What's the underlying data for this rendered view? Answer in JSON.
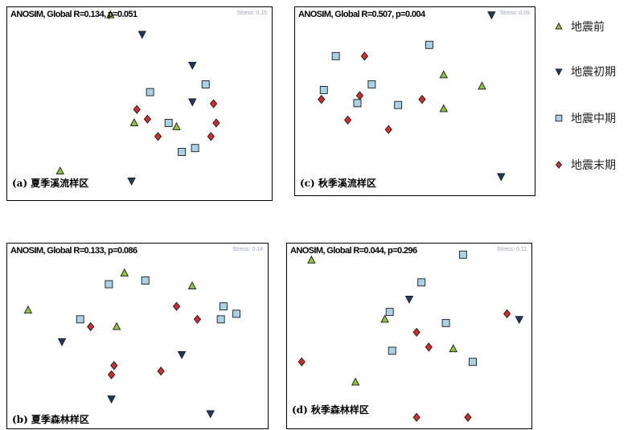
{
  "groups": [
    {
      "key": "before",
      "label": "地震前",
      "shape": "triangle-up",
      "fill": "#8cc43c"
    },
    {
      "key": "early",
      "label": "地震初期",
      "shape": "triangle-down",
      "fill": "#1f3a68"
    },
    {
      "key": "middle",
      "label": "地震中期",
      "shape": "square",
      "fill": "#a9d2e6"
    },
    {
      "key": "late",
      "label": "地震末期",
      "shape": "diamond",
      "fill": "#d42c2c"
    }
  ],
  "panels": [
    {
      "title": "ANOSIM, Global R=0.134, p=0.051",
      "stress": "Stress: 0.15",
      "label": "(a) 夏季溪流样区"
    },
    {
      "title": "ANOSIM, Global R=0.507, p=0.004",
      "stress": "Stress: 0.09",
      "label": "(c) 秋季溪流样区"
    },
    {
      "title": "ANOSIM, Global R=0.133, p=0.086",
      "stress": "Stress: 0.14",
      "label": "(b) 夏季森林样区"
    },
    {
      "title": "ANOSIM, Global R=0.044, p=0.296",
      "stress": "Stress: 0.11",
      "label": "(d) 秋季森林样区"
    }
  ],
  "chart_data": [
    {
      "type": "scatter",
      "title": "ANOSIM, Global R=0.134, p=0.051",
      "xlim": [
        0,
        100
      ],
      "ylim": [
        0,
        100
      ],
      "grid": false,
      "series": [
        {
          "name": "地震前",
          "points": [
            [
              39,
              96
            ],
            [
              48,
              40
            ],
            [
              64,
              38
            ],
            [
              20,
              15
            ]
          ]
        },
        {
          "name": "地震初期",
          "points": [
            [
              51,
              86
            ],
            [
              70,
              70
            ],
            [
              70,
              51
            ],
            [
              47,
              10
            ]
          ]
        },
        {
          "name": "地震中期",
          "points": [
            [
              54,
              56
            ],
            [
              75,
              60
            ],
            [
              61,
              40
            ],
            [
              66,
              25
            ],
            [
              71,
              27
            ]
          ]
        },
        {
          "name": "地震末期",
          "points": [
            [
              49,
              47
            ],
            [
              53,
              42
            ],
            [
              57,
              33
            ],
            [
              78,
              50
            ],
            [
              79,
              40
            ],
            [
              77,
              33
            ]
          ]
        }
      ]
    },
    {
      "type": "scatter",
      "title": "ANOSIM, Global R=0.507, p=0.004",
      "xlim": [
        0,
        100
      ],
      "ylim": [
        0,
        100
      ],
      "grid": false,
      "series": [
        {
          "name": "地震前",
          "points": [
            [
              62,
              64
            ],
            [
              78,
              58
            ],
            [
              62,
              46
            ]
          ]
        },
        {
          "name": "地震初期",
          "points": [
            [
              82,
              96
            ],
            [
              86,
              10
            ]
          ]
        },
        {
          "name": "地震中期",
          "points": [
            [
              17,
              74
            ],
            [
              12,
              56
            ],
            [
              32,
              59
            ],
            [
              56,
              80
            ],
            [
              26,
              49
            ],
            [
              43,
              48
            ]
          ]
        },
        {
          "name": "地震末期",
          "points": [
            [
              29,
              74
            ],
            [
              27,
              53
            ],
            [
              11,
              51
            ],
            [
              22,
              40
            ],
            [
              39,
              35
            ],
            [
              53,
              51
            ]
          ]
        }
      ]
    },
    {
      "type": "scatter",
      "title": "ANOSIM, Global R=0.133, p=0.086",
      "xlim": [
        0,
        100
      ],
      "ylim": [
        0,
        100
      ],
      "grid": false,
      "series": [
        {
          "name": "地震前",
          "points": [
            [
              45,
              84
            ],
            [
              71,
              77
            ],
            [
              8,
              64
            ],
            [
              42,
              55
            ]
          ]
        },
        {
          "name": "地震初期",
          "points": [
            [
              21,
              47
            ],
            [
              67,
              40
            ],
            [
              40,
              16
            ],
            [
              78,
              8
            ]
          ]
        },
        {
          "name": "地震中期",
          "points": [
            [
              39,
              78
            ],
            [
              53,
              80
            ],
            [
              83,
              66
            ],
            [
              88,
              62
            ],
            [
              82,
              59
            ],
            [
              28,
              59
            ]
          ]
        },
        {
          "name": "地震末期",
          "points": [
            [
              65,
              66
            ],
            [
              73,
              59
            ],
            [
              32,
              55
            ],
            [
              41,
              34
            ],
            [
              40,
              29
            ],
            [
              59,
              31
            ]
          ]
        }
      ]
    },
    {
      "type": "scatter",
      "title": "ANOSIM, Global R=0.044, p=0.296",
      "xlim": [
        0,
        100
      ],
      "ylim": [
        0,
        100
      ],
      "grid": false,
      "series": [
        {
          "name": "地震前",
          "points": [
            [
              10,
              91
            ],
            [
              40,
              59
            ],
            [
              68,
              43
            ],
            [
              28,
              25
            ]
          ]
        },
        {
          "name": "地震初期",
          "points": [
            [
              50,
              70
            ],
            [
              95,
              59
            ]
          ]
        },
        {
          "name": "地震中期",
          "points": [
            [
              72,
              94
            ],
            [
              55,
              79
            ],
            [
              42,
              63
            ],
            [
              65,
              57
            ],
            [
              43,
              42
            ],
            [
              76,
              36
            ]
          ]
        },
        {
          "name": "地震末期",
          "points": [
            [
              53,
              52
            ],
            [
              58,
              44
            ],
            [
              90,
              62
            ],
            [
              6,
              36
            ],
            [
              53,
              6
            ],
            [
              74,
              6
            ]
          ]
        }
      ]
    }
  ]
}
